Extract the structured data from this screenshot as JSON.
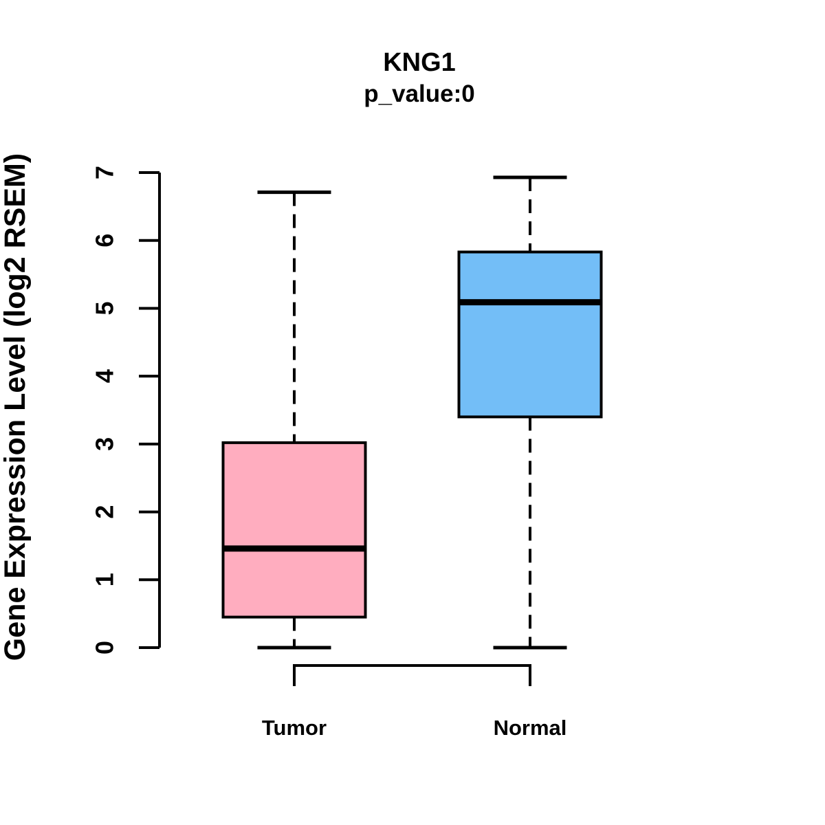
{
  "chart_data": {
    "type": "boxplot",
    "title": "KNG1",
    "subtitle": "p_value:0",
    "ylabel": "Gene Expression Level (log2 RSEM)",
    "xlabel": "",
    "ylim": [
      0,
      7
    ],
    "yticks": [
      "0",
      "1",
      "2",
      "3",
      "4",
      "5",
      "6",
      "7"
    ],
    "grid": false,
    "legend": "none",
    "colors": {
      "axis": "#000000",
      "background": "#FFFFFF",
      "tumor_fill": "#FFADBF",
      "normal_fill": "#73BEF7"
    },
    "groups": [
      {
        "label": "Tumor",
        "color": "#FFADBF",
        "min": 0,
        "q1": 0.45,
        "median": 1.46,
        "q3": 3.02,
        "max": 6.71,
        "outliers": []
      },
      {
        "label": "Normal",
        "color": "#73BEF7",
        "min": 0,
        "q1": 3.4,
        "median": 5.09,
        "q3": 5.83,
        "max": 6.93,
        "outliers": []
      }
    ],
    "annotations": [
      {
        "type": "comparison-bracket",
        "from": "Tumor",
        "to": "Normal"
      }
    ]
  }
}
